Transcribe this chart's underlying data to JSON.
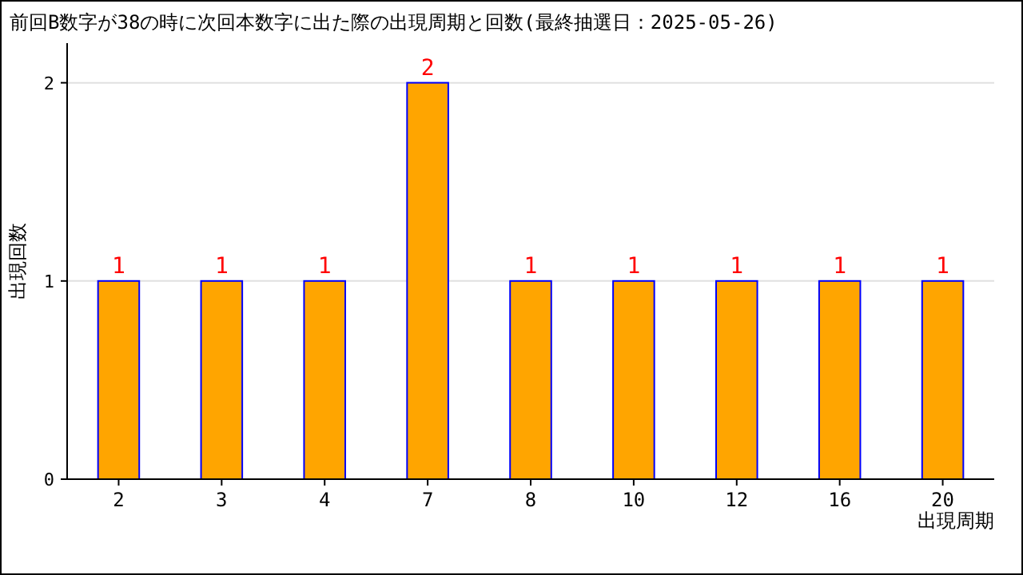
{
  "chart_data": {
    "type": "bar",
    "title": "前回B数字が38の時に次回本数字に出た際の出現周期と回数(最終抽選日：2025-05-26)",
    "xlabel": "出現周期",
    "ylabel": "出現回数",
    "categories": [
      "2",
      "3",
      "4",
      "7",
      "8",
      "10",
      "12",
      "16",
      "20"
    ],
    "values": [
      1,
      1,
      1,
      2,
      1,
      1,
      1,
      1,
      1
    ],
    "color": "#ffa500",
    "ylim": [
      0,
      2.2
    ],
    "yticks": [
      0,
      1,
      2
    ],
    "grid": "y",
    "data_labels": true
  }
}
